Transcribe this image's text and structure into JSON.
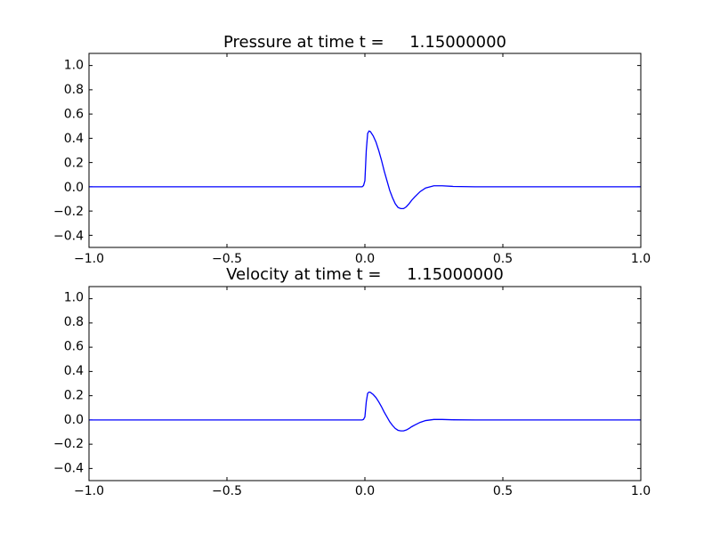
{
  "chart_data": [
    {
      "type": "line",
      "title": "Pressure at time t =     1.15000000",
      "xlabel": "",
      "ylabel": "",
      "xlim": [
        -1.0,
        1.0
      ],
      "ylim": [
        -0.5,
        1.1
      ],
      "xticks": [
        -1.0,
        -0.5,
        0.0,
        0.5,
        1.0
      ],
      "xtick_labels": [
        "−1.0",
        "−0.5",
        "0.0",
        "0.5",
        "1.0"
      ],
      "yticks": [
        -0.4,
        -0.2,
        0.0,
        0.2,
        0.4,
        0.6,
        0.8,
        1.0
      ],
      "ytick_labels": [
        "−0.4",
        "−0.2",
        "0.0",
        "0.2",
        "0.4",
        "0.6",
        "0.8",
        "1.0"
      ],
      "grid": false,
      "line_color": "#0000ff",
      "series": [
        {
          "x": [
            -1.0,
            -0.5,
            -0.01,
            -0.005,
            0.0,
            0.005,
            0.01,
            0.015,
            0.02,
            0.03,
            0.04,
            0.05,
            0.06,
            0.07,
            0.08,
            0.09,
            0.1,
            0.11,
            0.12,
            0.13,
            0.14,
            0.15,
            0.16,
            0.17,
            0.18,
            0.2,
            0.22,
            0.25,
            0.28,
            0.32,
            0.4,
            0.6,
            1.0
          ],
          "y": [
            0.0,
            0.0,
            0.0,
            0.01,
            0.05,
            0.3,
            0.44,
            0.46,
            0.455,
            0.42,
            0.37,
            0.3,
            0.22,
            0.13,
            0.05,
            -0.03,
            -0.09,
            -0.14,
            -0.17,
            -0.18,
            -0.18,
            -0.165,
            -0.14,
            -0.11,
            -0.085,
            -0.04,
            -0.01,
            0.008,
            0.008,
            0.003,
            0.0,
            0.0,
            0.0
          ]
        }
      ]
    },
    {
      "type": "line",
      "title": "Velocity at time t =     1.15000000",
      "xlabel": "",
      "ylabel": "",
      "xlim": [
        -1.0,
        1.0
      ],
      "ylim": [
        -0.5,
        1.1
      ],
      "xticks": [
        -1.0,
        -0.5,
        0.0,
        0.5,
        1.0
      ],
      "xtick_labels": [
        "−1.0",
        "−0.5",
        "0.0",
        "0.5",
        "1.0"
      ],
      "yticks": [
        -0.4,
        -0.2,
        0.0,
        0.2,
        0.4,
        0.6,
        0.8,
        1.0
      ],
      "ytick_labels": [
        "−0.4",
        "−0.2",
        "0.0",
        "0.2",
        "0.4",
        "0.6",
        "0.8",
        "1.0"
      ],
      "grid": false,
      "line_color": "#0000ff",
      "series": [
        {
          "x": [
            -1.0,
            -0.5,
            -0.01,
            -0.005,
            0.0,
            0.005,
            0.01,
            0.015,
            0.02,
            0.03,
            0.04,
            0.05,
            0.06,
            0.07,
            0.08,
            0.09,
            0.1,
            0.11,
            0.12,
            0.13,
            0.14,
            0.15,
            0.16,
            0.17,
            0.18,
            0.2,
            0.22,
            0.25,
            0.28,
            0.32,
            0.4,
            0.6,
            1.0
          ],
          "y": [
            0.0,
            0.0,
            0.0,
            0.005,
            0.025,
            0.15,
            0.22,
            0.23,
            0.228,
            0.21,
            0.185,
            0.15,
            0.11,
            0.065,
            0.025,
            -0.015,
            -0.045,
            -0.07,
            -0.085,
            -0.09,
            -0.09,
            -0.083,
            -0.07,
            -0.055,
            -0.043,
            -0.02,
            -0.005,
            0.004,
            0.004,
            0.0015,
            0.0,
            0.0,
            0.0
          ]
        }
      ]
    }
  ]
}
